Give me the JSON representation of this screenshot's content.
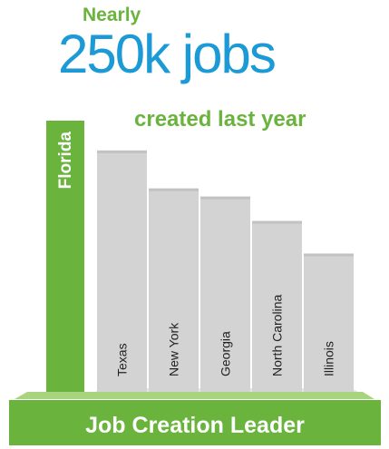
{
  "header": {
    "prefix": "Nearly",
    "headline": "250k jobs",
    "subline": "created last year"
  },
  "chart_data": {
    "type": "bar",
    "title": "",
    "xlabel": "",
    "ylabel": "",
    "categories": [
      "Florida",
      "Texas",
      "New York",
      "Georgia",
      "North Carolina",
      "Illinois"
    ],
    "values": [
      100,
      89,
      75,
      72,
      63,
      51
    ],
    "highlight": "Florida",
    "colors": {
      "highlight": "#6ab43e",
      "bars": "#d3d3d3",
      "highlight_top": "#8fc95d"
    },
    "grid": false,
    "legend": "none"
  },
  "banner": {
    "text": "Job Creation Leader"
  }
}
